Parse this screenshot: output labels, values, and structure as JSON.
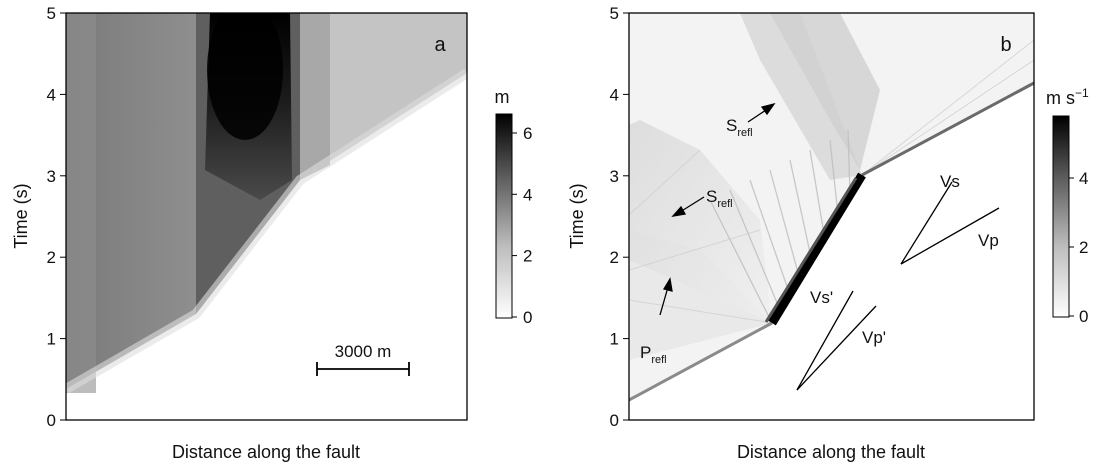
{
  "chart_data": [
    {
      "type": "heatmap",
      "panel_letter": "a",
      "xlabel": "Distance along the fault",
      "ylabel": "Time (s)",
      "ylim": [
        0,
        5
      ],
      "yticks": [
        "0",
        "1",
        "2",
        "3",
        "4",
        "5"
      ],
      "colorbar": {
        "unit": "m",
        "range": [
          0,
          6.5
        ],
        "ticks": [
          "0",
          "2",
          "4",
          "6"
        ],
        "colormap": "white-to-black"
      },
      "scale_bar_label": "3000 m",
      "rupture_front": {
        "x_fraction": [
          0.0,
          0.45,
          1.0
        ],
        "t_s": [
          0.3,
          1.2,
          4.2
        ]
      },
      "peak_value_region": {
        "x_fraction": [
          0.44,
          0.6
        ],
        "t_s": [
          3.1,
          5.0
        ],
        "value_m": 6.5
      }
    },
    {
      "type": "heatmap",
      "panel_letter": "b",
      "xlabel": "Distance along the fault",
      "ylabel": "Time (s)",
      "ylim": [
        0,
        5
      ],
      "yticks": [
        "0",
        "1",
        "2",
        "3",
        "4",
        "5"
      ],
      "colorbar": {
        "unit": "m s",
        "unit_exponent": "−1",
        "range": [
          0,
          5.8
        ],
        "ticks": [
          "0",
          "2",
          "4"
        ],
        "colormap": "white-to-black"
      },
      "annotations": [
        {
          "main": "S",
          "sub": "refl"
        },
        {
          "main": "S",
          "sub": "refl"
        },
        {
          "main": "P",
          "sub": "refl"
        },
        {
          "main": "Vs",
          "sub": ""
        },
        {
          "main": "Vp",
          "sub": ""
        },
        {
          "main": "Vs'",
          "sub": ""
        },
        {
          "main": "Vp'",
          "sub": ""
        }
      ],
      "rupture_front": {
        "x_fraction": [
          0.0,
          0.35,
          0.52,
          1.0
        ],
        "t_s": [
          0.3,
          1.2,
          3.0,
          4.2
        ]
      },
      "peak_value_segment": {
        "x_fraction": [
          0.35,
          0.52
        ],
        "t_s": [
          1.2,
          3.0
        ],
        "value_m_per_s": 5.8
      }
    }
  ]
}
